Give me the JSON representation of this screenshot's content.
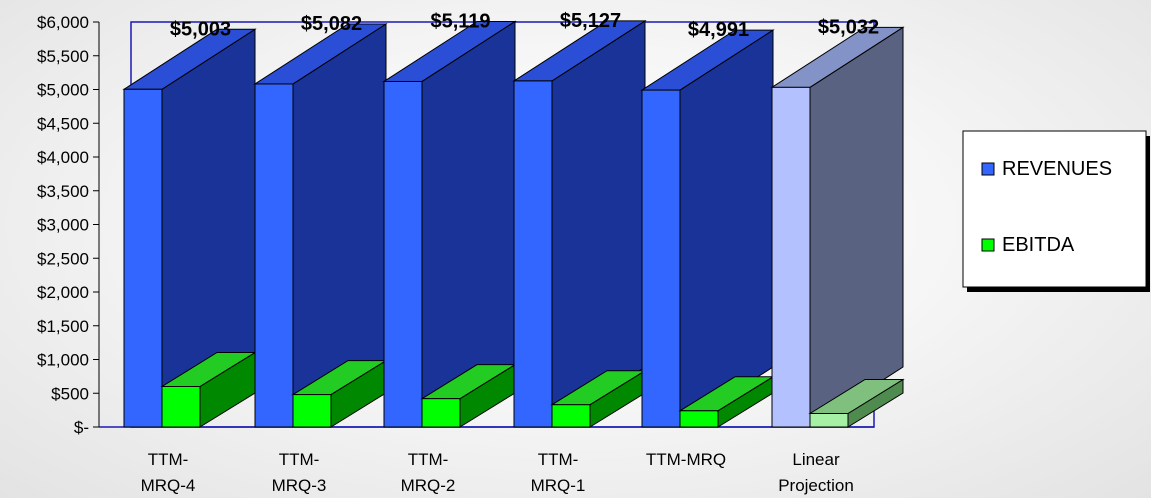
{
  "chart_data": {
    "type": "bar",
    "subtype": "3d-clustered-column",
    "categories": [
      [
        "TTM-",
        "MRQ-4"
      ],
      [
        "TTM-",
        "MRQ-3"
      ],
      [
        "TTM-",
        "MRQ-2"
      ],
      [
        "TTM-",
        "MRQ-1"
      ],
      [
        "TTM-MRQ"
      ],
      [
        "Linear",
        "Projection"
      ]
    ],
    "series": [
      {
        "name": "REVENUES",
        "values": [
          5003,
          5082,
          5119,
          5127,
          4991,
          5032
        ],
        "data_labels": [
          "$5,003",
          "$5,082",
          "$5,119",
          "$5,127",
          "$4,991",
          "$5,032"
        ],
        "color": "#3366ff",
        "side_color": "#1a3399",
        "top_color": "#2a4fd6",
        "projection_color": "#b3c2ff",
        "projection_side_color": "#5a6282",
        "projection_top_color": "#8393c7"
      },
      {
        "name": "EBITDA",
        "values": [
          600,
          480,
          420,
          330,
          240,
          200
        ],
        "color": "#00ff00",
        "side_color": "#008800",
        "top_color": "#22cc22",
        "projection_color": "#a6f0a6",
        "projection_side_color": "#4f8a4f",
        "projection_top_color": "#7fc07f"
      }
    ],
    "y_ticks": [
      "$-",
      "$500",
      "$1,000",
      "$1,500",
      "$2,000",
      "$2,500",
      "$3,000",
      "$3,500",
      "$4,000",
      "$4,500",
      "$5,000",
      "$5,500",
      "$6,000"
    ],
    "ylim": [
      0,
      6000
    ],
    "y_step": 500,
    "legend_position": "right",
    "frame_color": "#1a1ab3"
  }
}
